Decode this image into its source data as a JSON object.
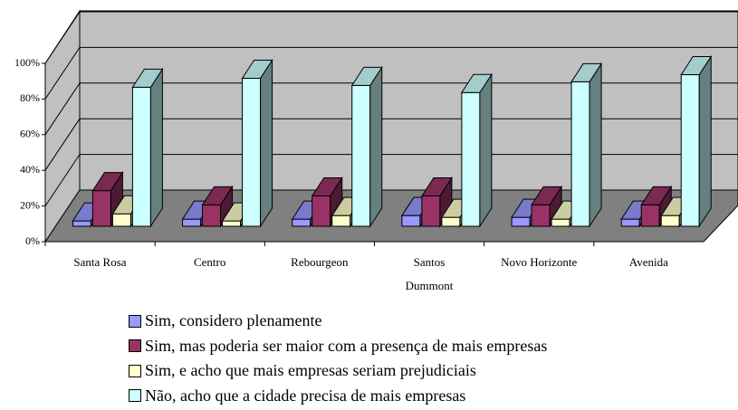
{
  "chart_data": {
    "type": "bar3d",
    "categories": [
      "Santa Rosa",
      "Centro",
      "Rebourgeon",
      "Santos\nDummont",
      "Novo Horizonte",
      "Avenida"
    ],
    "series": [
      {
        "name": "Sim, considero plenamente",
        "color": "#9999ff",
        "values": [
          3,
          4,
          4,
          6,
          5,
          4
        ]
      },
      {
        "name": "Sim, mas poderia ser maior com a presença de mais empresas",
        "color": "#993366",
        "values": [
          20,
          12,
          17,
          17,
          12,
          12
        ]
      },
      {
        "name": "Sim, e acho que mais empresas seriam prejudiciais",
        "color": "#ffffcc",
        "values": [
          7,
          3,
          6,
          5,
          4,
          6
        ]
      },
      {
        "name": "Não, acho que a cidade precisa de mais empresas",
        "color": "#ccffff",
        "values": [
          78,
          83,
          79,
          75,
          81,
          85
        ]
      }
    ],
    "ylim": [
      0,
      100
    ],
    "yticks": [
      {
        "value": 0,
        "label": "0%"
      },
      {
        "value": 20,
        "label": "20%"
      },
      {
        "value": 40,
        "label": "40%"
      },
      {
        "value": 60,
        "label": "60%"
      },
      {
        "value": 80,
        "label": "80%"
      },
      {
        "value": 100,
        "label": "100%"
      }
    ],
    "grid": true
  }
}
